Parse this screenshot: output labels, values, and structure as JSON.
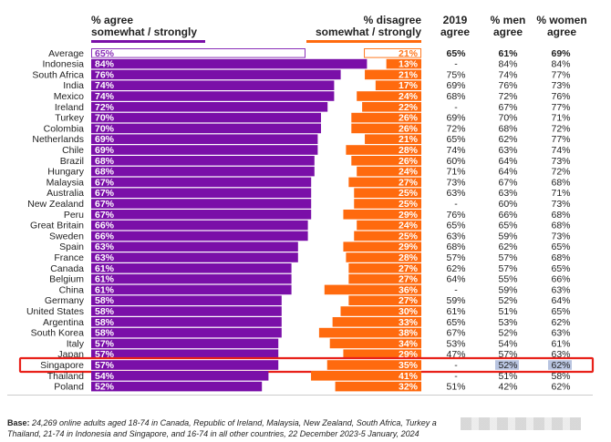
{
  "headers": {
    "agree": "% agree\nsomewhat / strongly",
    "disagree": "% disagree\nsomewhat / strongly",
    "y2019": "2019\nagree",
    "men": "% men\nagree",
    "women": "% women\nagree"
  },
  "colors": {
    "agree": "#7a0fa8",
    "disagree": "#ff6a0e",
    "highlight": "#e8211a",
    "agree_outline": "#8a2fb8",
    "disagree_outline": "#ff7a22",
    "highlight_fill": "#b8c4e0"
  },
  "footnote": {
    "label": "Base:",
    "text": " 24,269 online adults aged 18-74 in Canada, Republic of Ireland, Malaysia, New Zealand, South Africa, Turkey a",
    "text2": "Thailand, 21-74 in Indonesia and Singapore, and 16-74 in all other countries, 22 December 2023-5 January, 2024"
  },
  "chart_data": {
    "type": "bar",
    "orientation": "horizontal-diverging",
    "categories": [
      "Average",
      "Indonesia",
      "South Africa",
      "India",
      "Mexico",
      "Ireland",
      "Turkey",
      "Colombia",
      "Netherlands",
      "Chile",
      "Brazil",
      "Hungary",
      "Malaysia",
      "Australia",
      "New Zealand",
      "Peru",
      "Great Britain",
      "Sweden",
      "Spain",
      "France",
      "Canada",
      "Belgium",
      "China",
      "Germany",
      "United States",
      "Argentina",
      "South Korea",
      "Italy",
      "Japan",
      "Singapore",
      "Thailand",
      "Poland"
    ],
    "series": [
      {
        "name": "% agree somewhat / strongly",
        "values": [
          65,
          84,
          76,
          74,
          74,
          72,
          70,
          70,
          69,
          69,
          68,
          68,
          67,
          67,
          67,
          67,
          66,
          66,
          63,
          63,
          61,
          61,
          61,
          58,
          58,
          58,
          58,
          57,
          57,
          57,
          54,
          52
        ]
      },
      {
        "name": "% disagree somewhat / strongly",
        "values": [
          21,
          13,
          21,
          17,
          24,
          22,
          26,
          26,
          21,
          28,
          26,
          24,
          27,
          25,
          25,
          29,
          24,
          25,
          29,
          28,
          27,
          27,
          36,
          27,
          30,
          33,
          38,
          34,
          29,
          35,
          41,
          32
        ]
      }
    ],
    "table": {
      "y2019": [
        "65%",
        "-",
        "75%",
        "69%",
        "68%",
        "-",
        "69%",
        "72%",
        "65%",
        "74%",
        "60%",
        "71%",
        "73%",
        "63%",
        "-",
        "76%",
        "65%",
        "63%",
        "68%",
        "57%",
        "62%",
        "64%",
        "-",
        "59%",
        "61%",
        "65%",
        "67%",
        "53%",
        "47%",
        "-",
        "-",
        "51%"
      ],
      "men": [
        "61%",
        "84%",
        "74%",
        "76%",
        "72%",
        "67%",
        "70%",
        "68%",
        "62%",
        "63%",
        "64%",
        "64%",
        "67%",
        "63%",
        "60%",
        "66%",
        "65%",
        "59%",
        "62%",
        "57%",
        "57%",
        "55%",
        "59%",
        "52%",
        "51%",
        "53%",
        "52%",
        "54%",
        "57%",
        "52%",
        "51%",
        "42%"
      ],
      "women": [
        "69%",
        "84%",
        "77%",
        "73%",
        "76%",
        "77%",
        "71%",
        "72%",
        "77%",
        "74%",
        "73%",
        "72%",
        "68%",
        "71%",
        "73%",
        "68%",
        "68%",
        "73%",
        "65%",
        "68%",
        "65%",
        "66%",
        "63%",
        "64%",
        "65%",
        "62%",
        "63%",
        "61%",
        "63%",
        "62%",
        "58%",
        "62%"
      ]
    },
    "highlight": "Singapore"
  }
}
